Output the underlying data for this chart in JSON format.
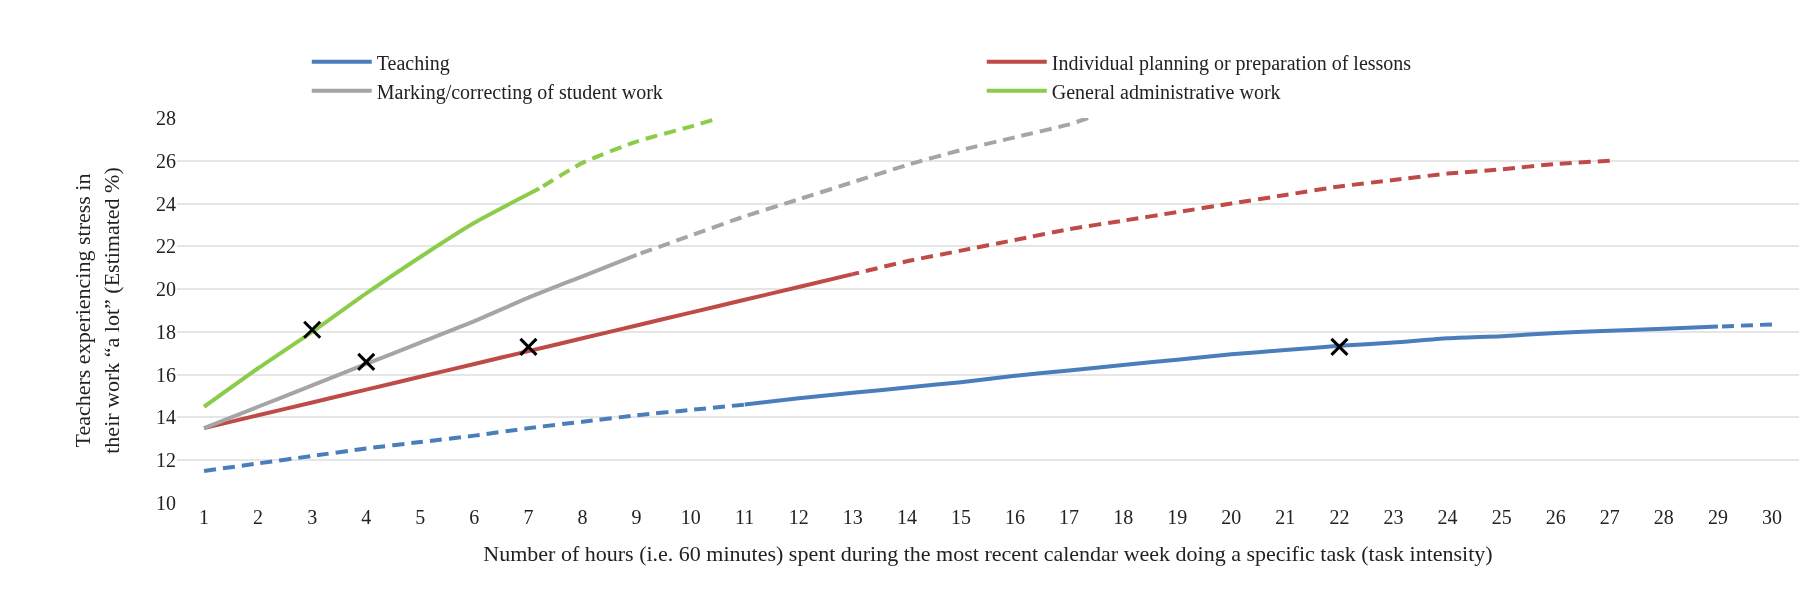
{
  "chart_data": {
    "type": "line",
    "xlabel": "Number of hours (i.e. 60 minutes) spent during the most recent calendar week doing a specific task (task intensity)",
    "ylabel": "Teachers experiencing stress in\ntheir work “a lot” (Estimated %)",
    "xlim": [
      0.5,
      30.5
    ],
    "xticks": [
      1,
      2,
      3,
      4,
      5,
      6,
      7,
      8,
      9,
      10,
      11,
      12,
      13,
      14,
      15,
      16,
      17,
      18,
      19,
      20,
      21,
      22,
      23,
      24,
      25,
      26,
      27,
      28,
      29,
      30
    ],
    "ylim": [
      10,
      28
    ],
    "yticks": [
      10,
      12,
      14,
      16,
      18,
      20,
      22,
      24,
      26,
      28
    ],
    "grid": "y",
    "legend": "top",
    "series": [
      {
        "name": "Teaching",
        "color": "#4a7ebb",
        "line_style": "solid",
        "x": [
          11,
          12,
          13,
          14,
          15,
          16,
          17,
          18,
          19,
          20,
          21,
          22,
          23,
          24,
          25,
          26,
          27,
          28,
          29
        ],
        "values": [
          14.6,
          14.9,
          15.15,
          15.4,
          15.65,
          15.95,
          16.2,
          16.45,
          16.7,
          16.95,
          17.15,
          17.35,
          17.5,
          17.7,
          17.8,
          17.95,
          18.05,
          18.15,
          18.25
        ]
      },
      {
        "name": "Individual planning or preparation of lessons",
        "color": "#be4b48",
        "line_style": "solid",
        "x": [
          1,
          2,
          3,
          4,
          5,
          6,
          7,
          8,
          9,
          10,
          11,
          12,
          13
        ],
        "values": [
          13.5,
          14.1,
          14.7,
          15.3,
          15.9,
          16.5,
          17.1,
          17.7,
          18.3,
          18.9,
          19.5,
          20.1,
          20.7
        ]
      },
      {
        "name": "Marking/correcting of student work",
        "color": "#a5a5a5",
        "line_style": "solid",
        "x": [
          1,
          2,
          3,
          4,
          5,
          6,
          7,
          8,
          9
        ],
        "values": [
          13.5,
          14.5,
          15.5,
          16.5,
          17.5,
          18.5,
          19.6,
          20.6,
          21.6
        ]
      },
      {
        "name": "General administrative work",
        "color": "#8ccc4a",
        "line_style": "solid",
        "x": [
          1,
          2,
          3,
          4,
          5,
          6,
          7.2
        ],
        "values": [
          14.5,
          16.3,
          18.0,
          19.8,
          21.5,
          23.1,
          24.7
        ]
      },
      {
        "color": "#4a7ebb",
        "line_style": "dashed",
        "x": [
          1,
          2,
          3,
          4,
          5,
          6,
          7,
          8,
          9,
          10,
          11
        ],
        "values": [
          11.5,
          11.85,
          12.2,
          12.55,
          12.85,
          13.15,
          13.5,
          13.8,
          14.1,
          14.35,
          14.6
        ]
      },
      {
        "color": "#4a7ebb",
        "line_style": "dashed",
        "x": [
          30,
          29
        ],
        "values": [
          18.35,
          18.25
        ]
      },
      {
        "color": "#be4b48",
        "line_style": "dashed",
        "x": [
          27,
          26,
          25,
          24,
          23,
          22,
          21,
          20,
          19,
          18,
          17,
          16,
          15,
          14,
          13
        ],
        "values": [
          26.0,
          25.85,
          25.6,
          25.4,
          25.1,
          24.8,
          24.4,
          24.0,
          23.6,
          23.2,
          22.8,
          22.3,
          21.8,
          21.3,
          20.7
        ]
      },
      {
        "color": "#a5a5a5",
        "line_style": "dashed",
        "x": [
          17.35,
          17,
          16,
          15,
          14,
          13,
          12,
          11,
          10,
          9
        ],
        "values": [
          28.0,
          27.7,
          27.1,
          26.5,
          25.8,
          25.0,
          24.2,
          23.4,
          22.5,
          21.6
        ]
      },
      {
        "color": "#8ccc4a",
        "line_style": "dashed",
        "x": [
          10.4,
          10,
          9,
          8,
          7.2
        ],
        "values": [
          27.9,
          27.6,
          26.9,
          25.9,
          24.7
        ]
      },
      {
        "type": "scatter",
        "marker": "cross",
        "color": "#000000",
        "x": [
          3,
          4,
          7,
          22
        ],
        "values": [
          18.1,
          16.6,
          17.3,
          17.3
        ]
      }
    ]
  }
}
